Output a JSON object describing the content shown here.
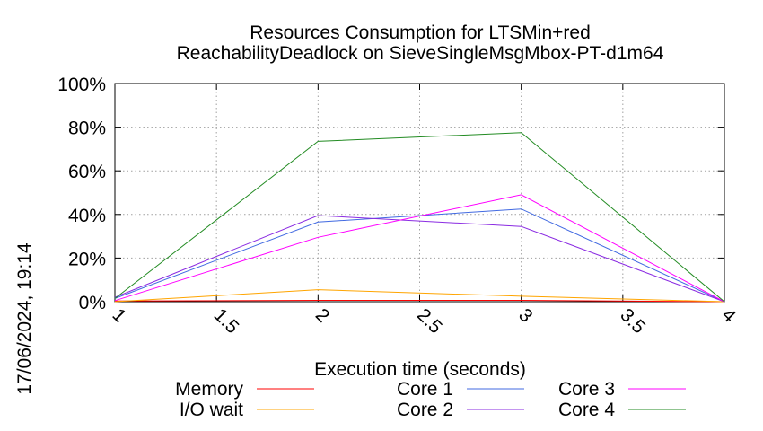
{
  "timestamp": "17/06/2024, 19:14",
  "chart_data": {
    "type": "line",
    "title": "Resources Consumption for LTSMin+red",
    "subtitle": "ReachabilityDeadlock on SieveSingleMsgMbox-PT-d1m64",
    "xlabel": "Execution time (seconds)",
    "ylabel": "",
    "xlim": [
      1,
      4
    ],
    "ylim": [
      0,
      100
    ],
    "grid": true,
    "legend_position": "bottom",
    "x_ticks": [
      1,
      1.5,
      2,
      2.5,
      3,
      3.5,
      4
    ],
    "x_tick_labels": [
      "1",
      "1.5",
      "2",
      "2.5",
      "3",
      "3.5",
      "4"
    ],
    "y_ticks": [
      0,
      20,
      40,
      60,
      80,
      100
    ],
    "y_tick_labels": [
      "0%",
      "20%",
      "40%",
      "60%",
      "80%",
      "100%"
    ],
    "x": [
      1,
      2,
      3,
      4
    ],
    "series": [
      {
        "name": "Memory",
        "color": "#ff0000",
        "values": [
          0.3,
          0.6,
          0.6,
          0
        ]
      },
      {
        "name": "I/O wait",
        "color": "#ffa500",
        "values": [
          0,
          5.5,
          2.5,
          0
        ]
      },
      {
        "name": "Core 1",
        "color": "#4169e1",
        "values": [
          1.5,
          36.5,
          42.5,
          0
        ]
      },
      {
        "name": "Core 2",
        "color": "#8a2be2",
        "values": [
          2,
          39.5,
          34.5,
          0
        ]
      },
      {
        "name": "Core 3",
        "color": "#ff00ff",
        "values": [
          0.5,
          29.5,
          49,
          0
        ]
      },
      {
        "name": "Core 4",
        "color": "#228b22",
        "values": [
          1.5,
          73.5,
          77.5,
          0
        ]
      }
    ]
  }
}
